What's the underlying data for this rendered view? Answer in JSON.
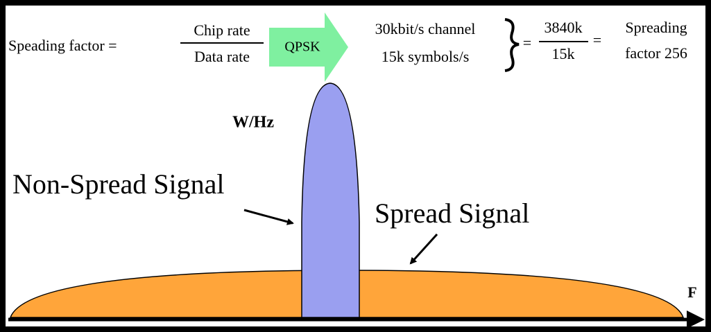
{
  "formula": {
    "left": "Speading factor =",
    "numerator": "Chip rate",
    "denominator": "Data rate",
    "modulation": "QPSK",
    "channel": "30kbit/s channel",
    "symbols": "15k symbols/s",
    "equals_1": "=",
    "ratio_numerator": "3840k",
    "ratio_denominator": "15k",
    "equals_2": "=",
    "result_line_1": "Spreading",
    "result_line_2": "factor 256"
  },
  "labels": {
    "y_axis": "W/Hz",
    "non_spread": "Non-Spread Signal",
    "spread": "Spread Signal",
    "x_axis": "F"
  }
}
